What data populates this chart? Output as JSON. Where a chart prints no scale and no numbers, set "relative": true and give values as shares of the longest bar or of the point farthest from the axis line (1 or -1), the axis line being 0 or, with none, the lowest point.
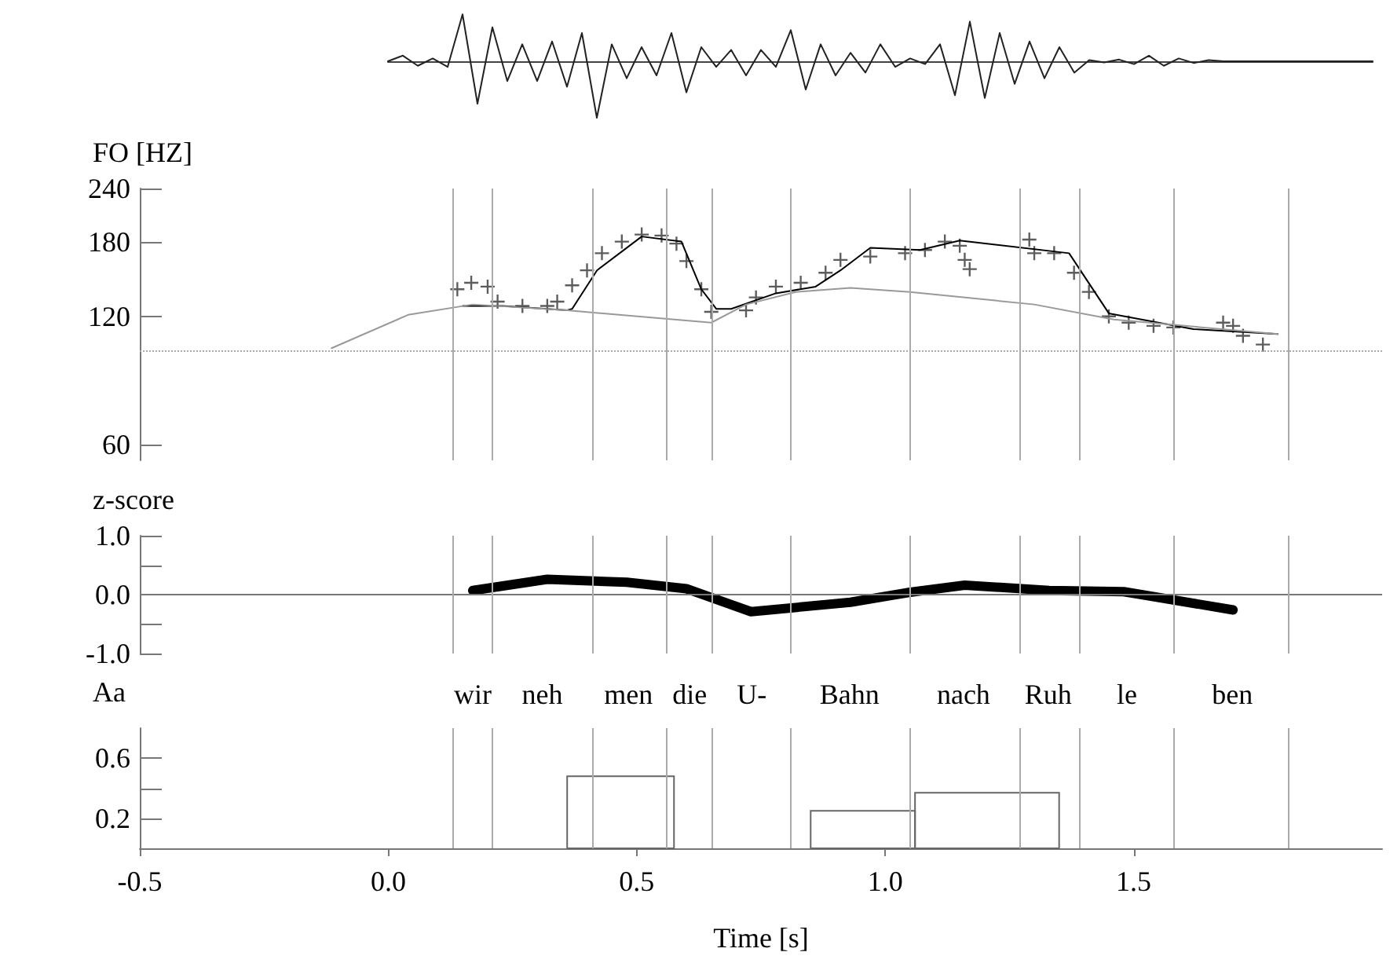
{
  "chart_data": [
    {
      "type": "line",
      "relative": true,
      "tick_labels": false,
      "categories": [
        null,
        null,
        null,
        null,
        null,
        null,
        null,
        null,
        null,
        null,
        null,
        null,
        null,
        null,
        null,
        null,
        null,
        null,
        null,
        null,
        null,
        null,
        null,
        null,
        null,
        null,
        null,
        null,
        null,
        null,
        null,
        null,
        null,
        null,
        null,
        null,
        null,
        null,
        null,
        null,
        null,
        null,
        null,
        null,
        null,
        null,
        null,
        null,
        null,
        null,
        null,
        null,
        null,
        null,
        null,
        null,
        null,
        null,
        null,
        null,
        null,
        null,
        null,
        null,
        null,
        null,
        null
      ],
      "series": [
        {
          "color": "#222222",
          "values": [
            0,
            0.1,
            -0.08,
            0.05,
            -0.1,
            0.83,
            -0.75,
            0.6,
            -0.35,
            0.3,
            -0.35,
            0.35,
            -0.45,
            0.5,
            -1.0,
            0.3,
            -0.3,
            0.25,
            -0.25,
            0.5,
            -0.55,
            0.25,
            -0.1,
            0.2,
            -0.25,
            0.2,
            -0.1,
            0.55,
            -0.5,
            0.3,
            -0.25,
            0.15,
            -0.2,
            0.3,
            -0.1,
            0.05,
            -0.05,
            0.3,
            -0.6,
            0.7,
            -0.65,
            0.5,
            -0.4,
            0.35,
            -0.3,
            0.25,
            -0.2,
            0.02,
            -0.02,
            0.03,
            -0.05,
            0.1,
            -0.08,
            0.05,
            -0.03,
            0.02,
            0,
            0,
            0,
            0,
            0,
            0,
            0,
            0,
            0,
            0,
            0
          ]
        }
      ]
    },
    {
      "type": "line",
      "ylabel": "FO [HZ]",
      "log": true,
      "tick_labels": "y",
      "xlim": [
        -0.5,
        2.0
      ],
      "ylim": [
        55,
        240
      ],
      "yticks": [
        60,
        120,
        180,
        240
      ],
      "ref_lines": [
        {
          "axis": "y",
          "value": 100,
          "color": "#aaaaaa",
          "line_style": "dotted"
        },
        {
          "axis": "x",
          "value": 0.128,
          "color": "#aaaaaa"
        },
        {
          "axis": "x",
          "value": 0.212,
          "color": "#aaaaaa"
        },
        {
          "axis": "x",
          "value": 0.408,
          "color": "#aaaaaa"
        },
        {
          "axis": "x",
          "value": 0.559,
          "color": "#aaaaaa"
        },
        {
          "axis": "x",
          "value": 0.654,
          "color": "#aaaaaa"
        },
        {
          "axis": "x",
          "value": 0.809,
          "color": "#aaaaaa"
        },
        {
          "axis": "x",
          "value": 1.047,
          "color": "#aaaaaa"
        },
        {
          "axis": "x",
          "value": 1.268,
          "color": "#aaaaaa"
        },
        {
          "axis": "x",
          "value": 1.388,
          "color": "#aaaaaa"
        },
        {
          "axis": "x",
          "value": 1.585,
          "color": "#aaaaaa"
        },
        {
          "axis": "x",
          "value": 1.812,
          "color": "#aaaaaa"
        }
      ],
      "series": [
        {
          "type": "scatter",
          "marker": "cross",
          "color": "#333333",
          "x": [
            0.139,
            0.167,
            0.2,
            0.22,
            0.27,
            0.32,
            0.34,
            0.37,
            0.4,
            0.43,
            0.47,
            0.51,
            0.55,
            0.58,
            0.6,
            0.63,
            0.65,
            0.72,
            0.74,
            0.78,
            0.83,
            0.88,
            0.91,
            0.97,
            1.04,
            1.08,
            1.12,
            1.15,
            1.16,
            1.17,
            1.29,
            1.3,
            1.34,
            1.38,
            1.41,
            1.45,
            1.49,
            1.54,
            1.58,
            1.68,
            1.7,
            1.72,
            1.76
          ],
          "values": [
            139,
            144,
            141,
            130,
            127,
            127,
            130,
            142,
            154,
            169,
            180,
            187,
            186,
            178,
            162,
            139,
            123,
            124,
            133,
            141,
            144,
            152,
            163,
            166,
            169,
            172,
            180,
            176,
            163,
            155,
            182,
            169,
            169,
            152,
            137,
            120,
            116,
            114,
            113,
            116,
            114,
            108,
            103
          ]
        },
        {
          "color": "#000000",
          "x": [
            0.15,
            0.23,
            0.36,
            0.37,
            0.42,
            0.51,
            0.59,
            0.63,
            0.66,
            0.69,
            0.78,
            0.86,
            0.91,
            0.97,
            1.07,
            1.15,
            1.37,
            1.45,
            1.62,
            1.79
          ],
          "values": [
            127,
            127,
            124,
            125,
            154,
            185,
            180,
            139,
            125,
            125,
            136,
            141,
            154,
            174,
            172,
            181,
            169,
            122,
            112,
            109
          ]
        },
        {
          "color": "#999999",
          "x": [
            -0.114,
            0.04,
            0.17,
            0.36,
            0.65,
            0.72,
            0.82,
            0.93,
            1.05,
            1.3,
            1.46,
            1.79
          ],
          "values": [
            101,
            121,
            128,
            124,
            116,
            128,
            137,
            140,
            137,
            128,
            118,
            109
          ]
        }
      ]
    },
    {
      "type": "line",
      "ylabel": "z-score",
      "tick_labels": "y",
      "xlim": [
        -0.5,
        2.0
      ],
      "ylim": [
        -1.0,
        1.0
      ],
      "yticks": [
        {
          "value": 1.0,
          "label": "1.0"
        },
        {
          "value": 0.5,
          "label": null
        },
        {
          "value": 0,
          "label": "0.0"
        },
        {
          "value": -0.5,
          "label": null
        },
        {
          "value": -1.0,
          "label": "-1.0"
        }
      ],
      "ref_lines": [
        {
          "axis": "y",
          "value": 0,
          "color": "#777777"
        },
        {
          "axis": "x",
          "value": 0.128,
          "color": "#aaaaaa"
        },
        {
          "axis": "x",
          "value": 0.212,
          "color": "#aaaaaa"
        },
        {
          "axis": "x",
          "value": 0.408,
          "color": "#aaaaaa"
        },
        {
          "axis": "x",
          "value": 0.559,
          "color": "#aaaaaa"
        },
        {
          "axis": "x",
          "value": 0.654,
          "color": "#aaaaaa"
        },
        {
          "axis": "x",
          "value": 0.809,
          "color": "#aaaaaa"
        },
        {
          "axis": "x",
          "value": 1.047,
          "color": "#aaaaaa"
        },
        {
          "axis": "x",
          "value": 1.268,
          "color": "#aaaaaa"
        },
        {
          "axis": "x",
          "value": 1.388,
          "color": "#aaaaaa"
        },
        {
          "axis": "x",
          "value": 1.585,
          "color": "#aaaaaa"
        },
        {
          "axis": "x",
          "value": 1.812,
          "color": "#aaaaaa"
        }
      ],
      "series": [
        {
          "color": "#000000",
          "x": [
            0.17,
            0.32,
            0.48,
            0.6,
            0.73,
            0.93,
            1.05,
            1.16,
            1.33,
            1.48,
            1.7
          ],
          "values": [
            0.07,
            0.26,
            0.21,
            0.1,
            -0.29,
            -0.13,
            0.04,
            0.16,
            0.07,
            0.05,
            -0.26
          ]
        }
      ]
    },
    {
      "type": "histogram",
      "ylabel": "Aa",
      "xlabel": "Time [s]",
      "xlim": [
        -0.5,
        2.0
      ],
      "ylim": [
        0,
        0.8
      ],
      "xticks": [
        -0.5,
        {
          "value": 0,
          "label": "0.0"
        },
        0.5,
        {
          "value": 1.0,
          "label": "1.0"
        },
        1.5
      ],
      "yticks": [
        0.6,
        {
          "value": 0.4,
          "label": null
        },
        0.2
      ],
      "bins": [
        0.36,
        0.575,
        0.85,
        1.06,
        1.35
      ],
      "values": [
        0.48,
        0,
        0.25,
        0.37
      ],
      "color": "#666666",
      "annotations": [
        "wir",
        "neh",
        "men",
        "die",
        "U-",
        "Bahn",
        "nach",
        "Ruh",
        "le",
        "ben"
      ],
      "ref_lines": [
        {
          "axis": "x",
          "value": 0.128,
          "color": "#aaaaaa"
        },
        {
          "axis": "x",
          "value": 0.212,
          "color": "#aaaaaa"
        },
        {
          "axis": "x",
          "value": 0.408,
          "color": "#aaaaaa"
        },
        {
          "axis": "x",
          "value": 0.559,
          "color": "#aaaaaa"
        },
        {
          "axis": "x",
          "value": 0.654,
          "color": "#aaaaaa"
        },
        {
          "axis": "x",
          "value": 0.809,
          "color": "#aaaaaa"
        },
        {
          "axis": "x",
          "value": 1.047,
          "color": "#aaaaaa"
        },
        {
          "axis": "x",
          "value": 1.268,
          "color": "#aaaaaa"
        },
        {
          "axis": "x",
          "value": 1.388,
          "color": "#aaaaaa"
        },
        {
          "axis": "x",
          "value": 1.585,
          "color": "#aaaaaa"
        },
        {
          "axis": "x",
          "value": 1.812,
          "color": "#aaaaaa"
        }
      ]
    }
  ]
}
